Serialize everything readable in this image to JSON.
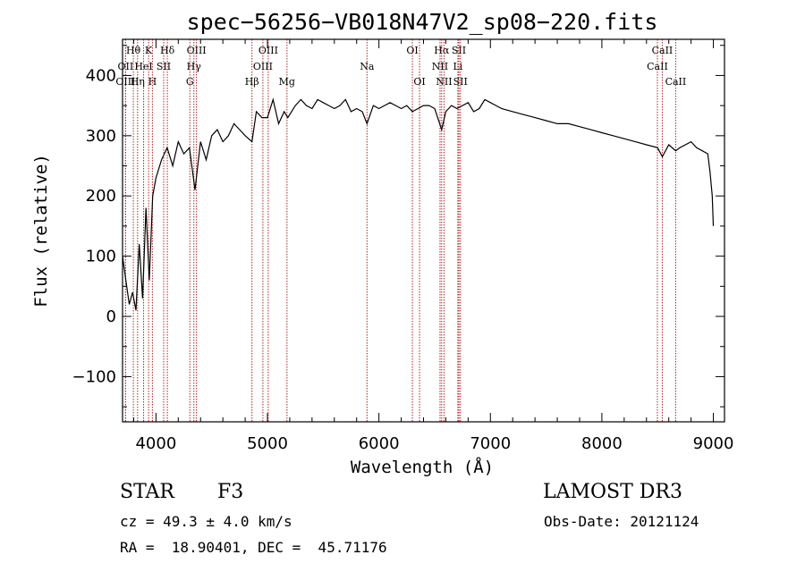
{
  "chart_data": {
    "type": "line",
    "title": "spec−56256−VB018N47V2_sp08−220.fits",
    "xlabel": "Wavelength (Å)",
    "ylabel": "Flux (relative)",
    "xlim": [
      3700,
      9100
    ],
    "ylim": [
      -175,
      460
    ],
    "x_ticks": [
      4000,
      5000,
      6000,
      7000,
      8000,
      9000
    ],
    "x_tick_labels": [
      "4000",
      "5000",
      "6000",
      "7000",
      "8000",
      "9000"
    ],
    "y_ticks": [
      -100,
      0,
      100,
      200,
      300,
      400
    ],
    "y_tick_labels": [
      "−100",
      "0",
      "100",
      "200",
      "300",
      "400"
    ],
    "spectrum": {
      "x": [
        3700,
        3730,
        3760,
        3790,
        3820,
        3850,
        3880,
        3910,
        3940,
        3970,
        4000,
        4050,
        4100,
        4150,
        4200,
        4250,
        4300,
        4350,
        4400,
        4450,
        4500,
        4550,
        4600,
        4650,
        4700,
        4750,
        4800,
        4861,
        4900,
        4950,
        5000,
        5050,
        5100,
        5150,
        5183,
        5250,
        5300,
        5350,
        5400,
        5450,
        5500,
        5550,
        5600,
        5650,
        5700,
        5750,
        5800,
        5850,
        5893,
        5950,
        6000,
        6050,
        6100,
        6150,
        6200,
        6250,
        6300,
        6350,
        6400,
        6450,
        6500,
        6563,
        6600,
        6650,
        6700,
        6750,
        6800,
        6850,
        6900,
        6950,
        7000,
        7050,
        7100,
        7200,
        7300,
        7400,
        7500,
        7600,
        7700,
        7800,
        7900,
        8000,
        8100,
        8200,
        8300,
        8400,
        8500,
        8542,
        8600,
        8662,
        8700,
        8800,
        8850,
        8900,
        8950,
        8970,
        8990,
        9000
      ],
      "y": [
        100,
        60,
        20,
        40,
        10,
        120,
        30,
        180,
        60,
        200,
        230,
        260,
        280,
        250,
        290,
        270,
        280,
        210,
        290,
        260,
        300,
        310,
        290,
        300,
        320,
        310,
        300,
        290,
        340,
        330,
        330,
        360,
        320,
        340,
        330,
        350,
        360,
        350,
        345,
        360,
        355,
        350,
        345,
        350,
        360,
        340,
        345,
        340,
        320,
        350,
        345,
        350,
        355,
        350,
        345,
        350,
        340,
        345,
        350,
        350,
        345,
        310,
        340,
        350,
        345,
        350,
        355,
        340,
        345,
        360,
        355,
        350,
        345,
        340,
        335,
        330,
        325,
        320,
        320,
        315,
        310,
        305,
        300,
        295,
        290,
        285,
        280,
        265,
        285,
        275,
        280,
        290,
        280,
        275,
        270,
        240,
        200,
        150
      ]
    },
    "spectral_lines": [
      {
        "label": "Hθ",
        "x": 3797,
        "row": 0
      },
      {
        "label": "K",
        "x": 3934,
        "row": 0
      },
      {
        "label": "Hδ",
        "x": 4102,
        "row": 0
      },
      {
        "label": "OIII",
        "x": 4363,
        "row": 0
      },
      {
        "label": "OIII",
        "x": 5007,
        "row": 0
      },
      {
        "label": "OI",
        "x": 6300,
        "row": 0
      },
      {
        "label": "Hα",
        "x": 6563,
        "row": 0
      },
      {
        "label": "SII",
        "x": 6717,
        "row": 0
      },
      {
        "label": "CaII",
        "x": 8542,
        "row": 0
      },
      {
        "label": "OII",
        "x": 3727,
        "row": 1
      },
      {
        "label": "HeI",
        "x": 3889,
        "row": 1
      },
      {
        "label": "SII",
        "x": 4069,
        "row": 1
      },
      {
        "label": "Hγ",
        "x": 4340,
        "row": 1
      },
      {
        "label": "OIII",
        "x": 4959,
        "row": 1
      },
      {
        "label": "Na",
        "x": 5893,
        "row": 1
      },
      {
        "label": "NII",
        "x": 6548,
        "row": 1
      },
      {
        "label": "Li",
        "x": 6708,
        "row": 1
      },
      {
        "label": "CaII",
        "x": 8498,
        "row": 1
      },
      {
        "label": "OIII",
        "x": 3727,
        "row": 2
      },
      {
        "label": "Hη",
        "x": 3835,
        "row": 2
      },
      {
        "label": "H",
        "x": 3968,
        "row": 2
      },
      {
        "label": "G",
        "x": 4304,
        "row": 2
      },
      {
        "label": "Hβ",
        "x": 4861,
        "row": 2
      },
      {
        "label": "Mg",
        "x": 5175,
        "row": 2
      },
      {
        "label": "OI",
        "x": 6364,
        "row": 2
      },
      {
        "label": "NII",
        "x": 6584,
        "row": 2
      },
      {
        "label": "SII",
        "x": 6731,
        "row": 2
      },
      {
        "label": "CaII",
        "x": 8662,
        "row": 2
      }
    ]
  },
  "info": {
    "object_type": "STAR",
    "subclass": "F3",
    "survey": "LAMOST DR3",
    "redshift": "cz = 49.3 ± 4.0 km/s",
    "obs_date": "Obs-Date: 20121124",
    "coords": "RA =  18.90401, DEC =  45.71176"
  },
  "colors": {
    "spectrum": "#000000",
    "line_markers": "#b22222",
    "axes": "#000000",
    "background": "#ffffff"
  }
}
